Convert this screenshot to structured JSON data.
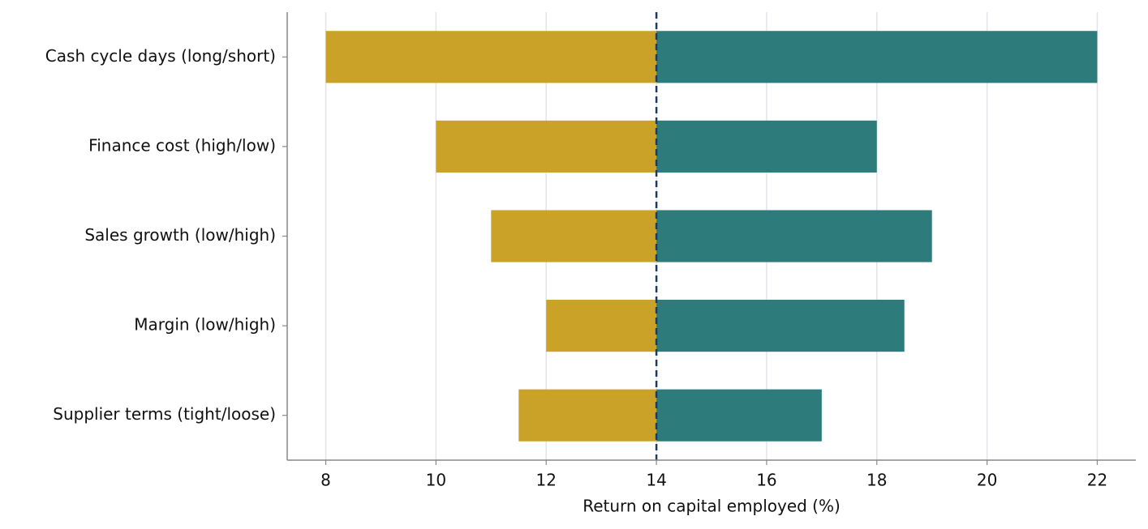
{
  "chart_data": {
    "type": "tornado",
    "xlabel": "Return on capital employed (%)",
    "categories": [
      "Cash cycle days (long/short)",
      "Finance cost (high/low)",
      "Sales growth (low/high)",
      "Margin (low/high)",
      "Supplier terms (tight/loose)"
    ],
    "baseline": 14,
    "series": [
      {
        "color": "#c9a227",
        "values": [
          8,
          10,
          11,
          12,
          11.5
        ]
      },
      {
        "color": "#2e7b7b",
        "values": [
          22,
          18,
          19,
          18.5,
          17
        ]
      }
    ],
    "xlim": [
      7.3,
      22.7
    ],
    "xticks": [
      8,
      10,
      12,
      14,
      16,
      18,
      20,
      22
    ],
    "grid": true,
    "baseline_color": "#1f3a5f"
  }
}
